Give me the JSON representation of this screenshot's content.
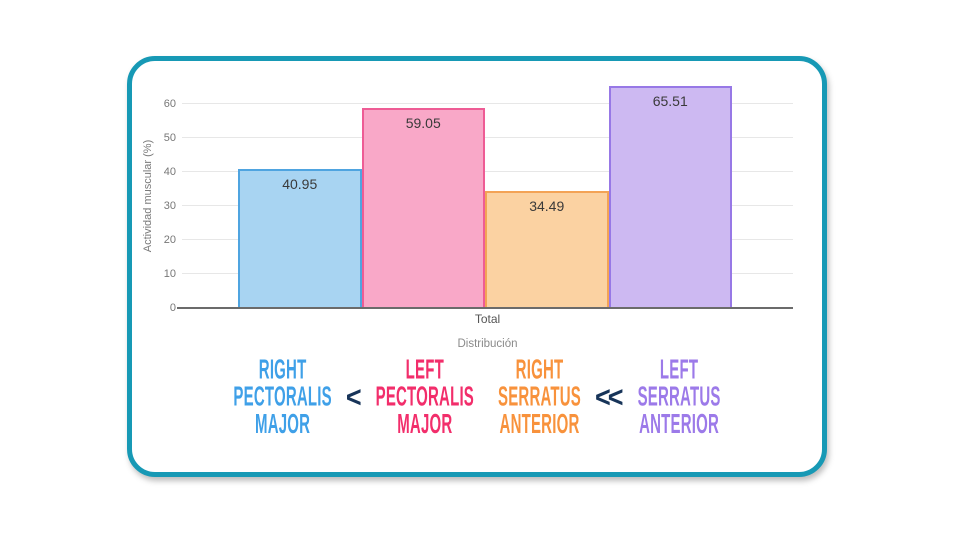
{
  "page": {
    "background": "#ffffff"
  },
  "card": {
    "border_color": "#1799B5",
    "background": "#ffffff"
  },
  "chart_data": {
    "type": "bar",
    "title": "",
    "categories": [
      "Total"
    ],
    "xlabel": "Distribución",
    "ylabel": "Actividad muscular (%)",
    "yticks": [
      0,
      10,
      20,
      30,
      40,
      50,
      60
    ],
    "ylim": [
      0,
      66
    ],
    "grid": true,
    "legend_position": "none",
    "series": [
      {
        "name": "Right Pectoralis Major",
        "values": [
          40.95
        ],
        "label": "40.95",
        "fill": "#A8D4F2",
        "border": "#4FA4E0"
      },
      {
        "name": "Left Pectoralis Major",
        "values": [
          59.05
        ],
        "label": "59.05",
        "fill": "#F9A8C8",
        "border": "#EE5C95"
      },
      {
        "name": "Right Serratus Anterior",
        "values": [
          34.49
        ],
        "label": "34.49",
        "fill": "#FBD2A2",
        "border": "#F3A356"
      },
      {
        "name": "Left Serratus Anterior",
        "values": [
          65.51
        ],
        "label": "65.51",
        "fill": "#CDB9F2",
        "border": "#9778E6"
      }
    ]
  },
  "comparison": {
    "items": [
      {
        "type": "label",
        "name": "right-pectoralis-major",
        "lines": [
          "RIGHT",
          "PECTORALIS",
          "MAJOR"
        ],
        "color": "#3FA0E8"
      },
      {
        "type": "op",
        "name": "less-than",
        "text": "<",
        "color": "#173459"
      },
      {
        "type": "label",
        "name": "left-pectoralis-major",
        "lines": [
          "LEFT",
          "PECTORALIS",
          "MAJOR"
        ],
        "color": "#F22E6B"
      },
      {
        "type": "label",
        "name": "right-serratus-anterior",
        "lines": [
          "RIGHT",
          "SERRATUS",
          "ANTERIOR"
        ],
        "color": "#F8923C",
        "extraGap": true
      },
      {
        "type": "op",
        "name": "much-less-than",
        "text": "<<",
        "color": "#173459"
      },
      {
        "type": "label",
        "name": "left-serratus-anterior",
        "lines": [
          "LEFT",
          "SERRATUS",
          "ANTERIOR"
        ],
        "color": "#9C7AE9"
      }
    ]
  }
}
